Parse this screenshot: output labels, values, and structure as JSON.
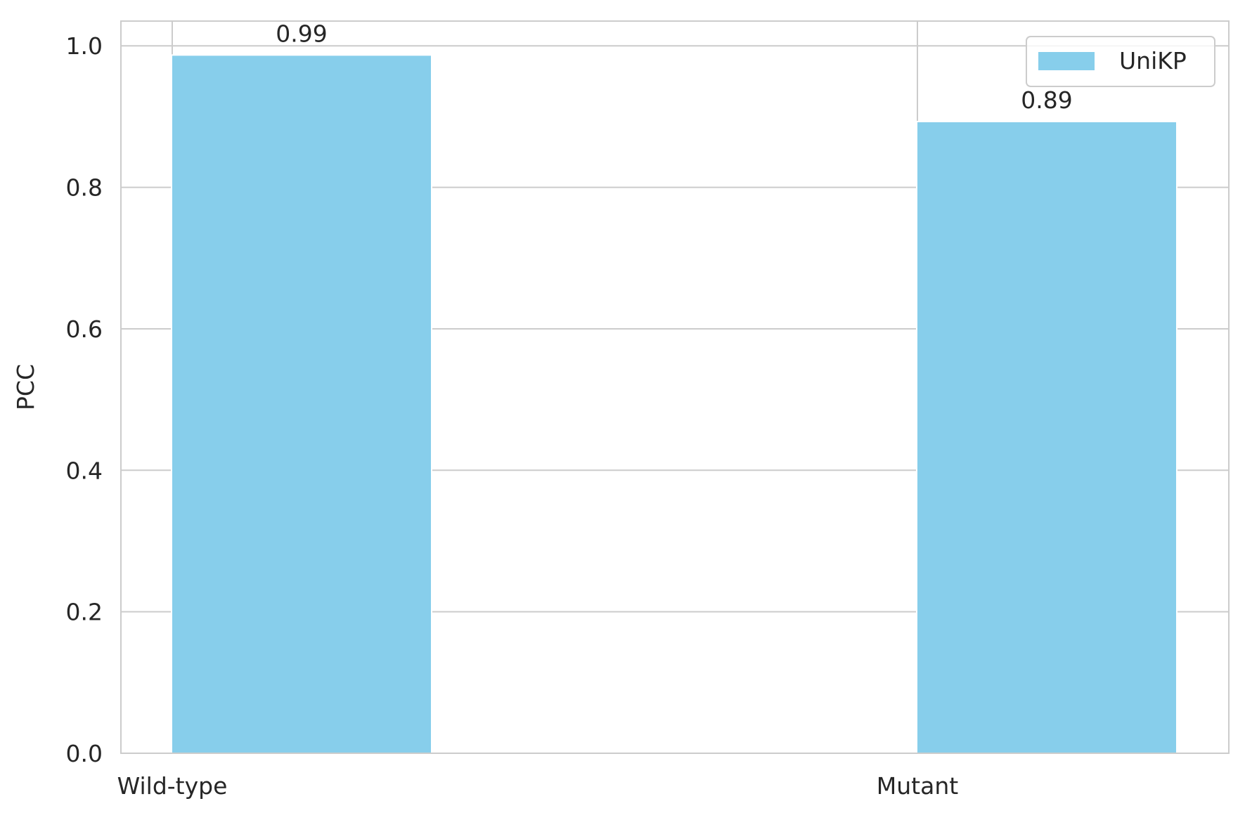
{
  "chart_data": {
    "type": "bar",
    "title": "",
    "xlabel": "",
    "ylabel": "PCC",
    "categories": [
      "Wild-type",
      "Mutant"
    ],
    "series": [
      {
        "name": "UniKP",
        "values": [
          0.986,
          0.892
        ],
        "labels": [
          "0.99",
          "0.89"
        ],
        "color": "#87CEEB"
      }
    ],
    "ylim": [
      0,
      1.035
    ],
    "yticks": [
      {
        "value": 0.0,
        "label": "0.0"
      },
      {
        "value": 0.2,
        "label": "0.2"
      },
      {
        "value": 0.4,
        "label": "0.4"
      },
      {
        "value": 0.6,
        "label": "0.6"
      },
      {
        "value": 0.8,
        "label": "0.8"
      },
      {
        "value": 1.0,
        "label": "1.0"
      }
    ],
    "grid": true,
    "legend_position": "top-right"
  },
  "colors": {
    "grid": "#cccccc",
    "axes": "#cccccc",
    "text": "#262626",
    "background": "#ffffff"
  }
}
